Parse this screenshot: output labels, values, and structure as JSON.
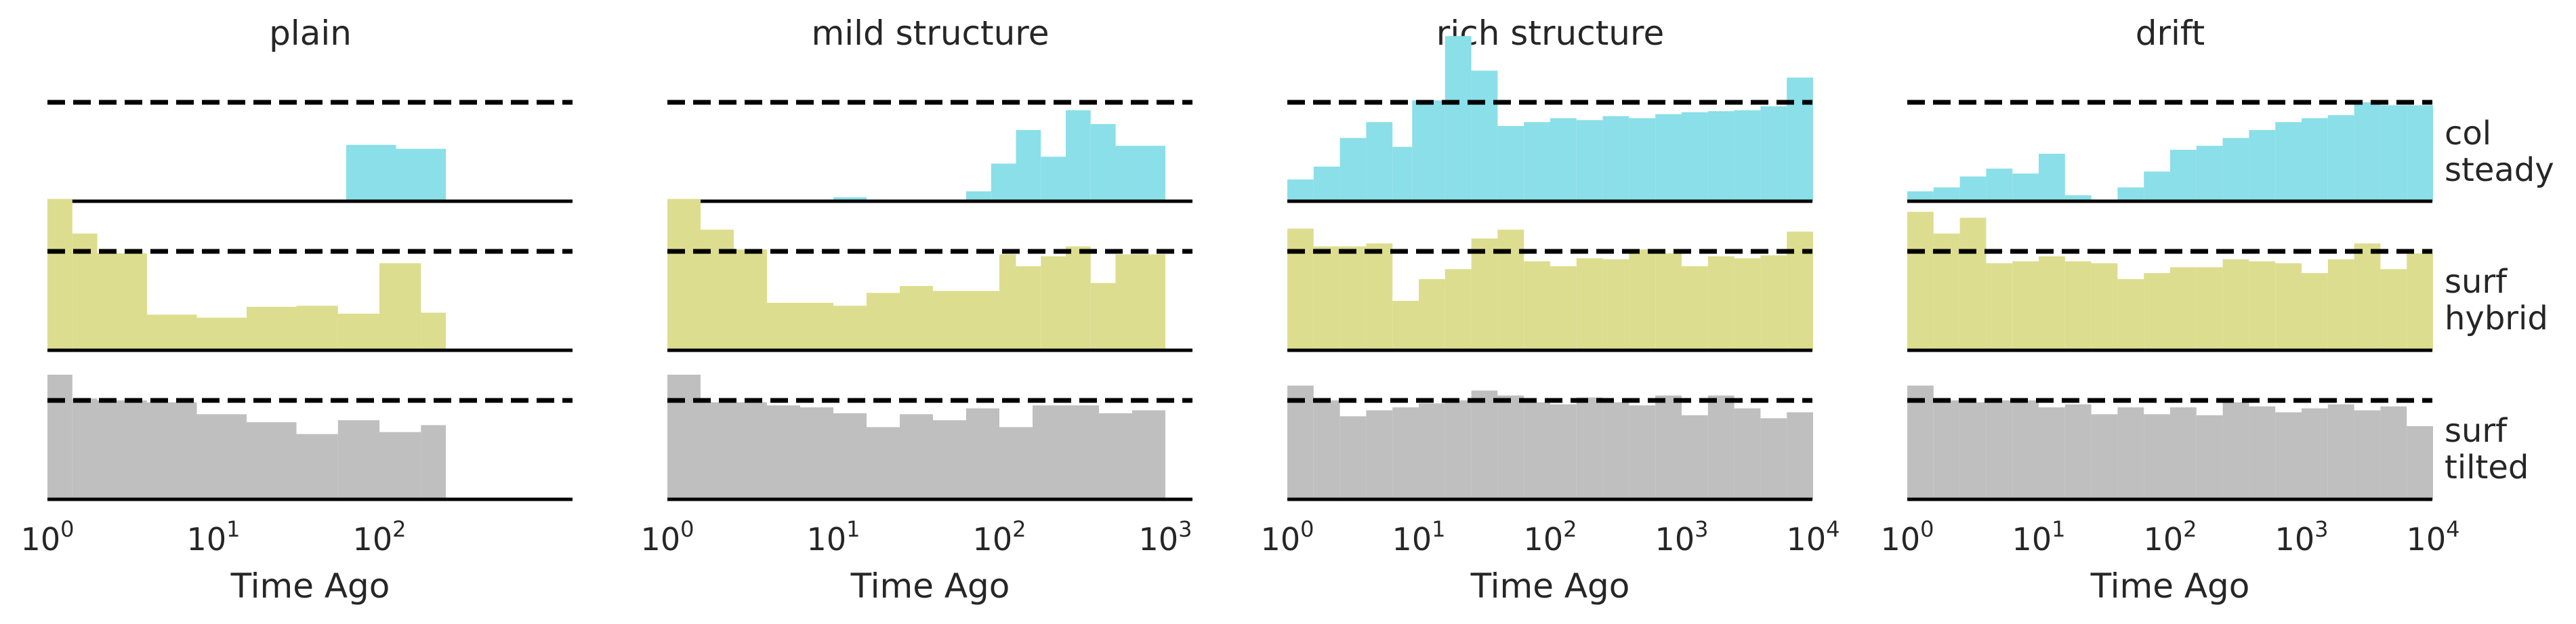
{
  "figure": {
    "columns": [
      {
        "title": "plain",
        "xlabel": "Time Ago",
        "xmax_exp": 2.4,
        "ticks": [
          {
            "base": "10",
            "exp": "0"
          },
          {
            "base": "10",
            "exp": "1"
          },
          {
            "base": "10",
            "exp": "2"
          }
        ]
      },
      {
        "title": "mild structure",
        "xlabel": "Time Ago",
        "xmax_exp": 3.0,
        "ticks": [
          {
            "base": "10",
            "exp": "0"
          },
          {
            "base": "10",
            "exp": "1"
          },
          {
            "base": "10",
            "exp": "2"
          },
          {
            "base": "10",
            "exp": "3"
          }
        ]
      },
      {
        "title": "rich structure",
        "xlabel": "Time Ago",
        "xmax_exp": 4.0,
        "ticks": [
          {
            "base": "10",
            "exp": "0"
          },
          {
            "base": "10",
            "exp": "1"
          },
          {
            "base": "10",
            "exp": "2"
          },
          {
            "base": "10",
            "exp": "3"
          },
          {
            "base": "10",
            "exp": "4"
          }
        ]
      },
      {
        "title": "drift",
        "xlabel": "Time Ago",
        "xmax_exp": 4.0,
        "ticks": [
          {
            "base": "10",
            "exp": "0"
          },
          {
            "base": "10",
            "exp": "1"
          },
          {
            "base": "10",
            "exp": "2"
          },
          {
            "base": "10",
            "exp": "3"
          },
          {
            "base": "10",
            "exp": "4"
          }
        ]
      }
    ],
    "rows": [
      {
        "label_lines": [
          "col",
          "steady"
        ],
        "color": "#8adfe8"
      },
      {
        "label_lines": [
          "surf",
          "hybrid"
        ],
        "color": "#dddd8f"
      },
      {
        "label_lines": [
          "surf",
          "tilted"
        ],
        "color": "#bfbfbf"
      }
    ],
    "colors": {
      "baseline": "#000000",
      "reference": "#000000"
    }
  },
  "chart_data": {
    "type": "histogram-grid",
    "x_scale": "log",
    "reference_line_level": 1.0,
    "panels": [
      {
        "column": "plain",
        "row": "col steady",
        "bins": [
          [
            0,
            1.8,
            0
          ],
          [
            1.8,
            2.1,
            0.57
          ],
          [
            2.1,
            2.4,
            0.53
          ]
        ]
      },
      {
        "column": "plain",
        "row": "surf hybrid",
        "bins": [
          [
            0,
            0.15,
            1.53
          ],
          [
            0.15,
            0.3,
            1.18
          ],
          [
            0.3,
            0.6,
            0.98
          ],
          [
            0.6,
            0.9,
            0.36
          ],
          [
            0.9,
            1.2,
            0.33
          ],
          [
            1.2,
            1.5,
            0.44
          ],
          [
            1.5,
            1.75,
            0.45
          ],
          [
            1.75,
            2.0,
            0.37
          ],
          [
            2.0,
            2.25,
            0.88
          ],
          [
            2.25,
            2.5,
            0.38
          ],
          [
            2.5,
            2.75,
            0.85
          ],
          [
            2.75,
            3.0,
            0.9
          ]
        ]
      },
      {
        "column": "plain",
        "row": "surf tilted",
        "bins": [
          [
            0,
            0.15,
            1.26
          ],
          [
            0.15,
            0.3,
            1.02
          ],
          [
            0.3,
            0.6,
            1.0
          ],
          [
            0.6,
            0.9,
            0.98
          ],
          [
            0.9,
            1.2,
            0.86
          ],
          [
            1.2,
            1.5,
            0.78
          ],
          [
            1.5,
            1.75,
            0.66
          ],
          [
            1.75,
            2.0,
            0.8
          ],
          [
            2.0,
            2.25,
            0.68
          ],
          [
            2.25,
            2.5,
            0.75
          ],
          [
            2.5,
            2.75,
            0.82
          ],
          [
            2.75,
            3.0,
            0.86
          ]
        ]
      },
      {
        "column": "mild structure",
        "row": "col steady",
        "bins": [
          [
            0,
            0.2,
            0
          ],
          [
            0.2,
            0.4,
            0
          ],
          [
            0.4,
            0.6,
            0
          ],
          [
            0.6,
            0.8,
            0
          ],
          [
            0.8,
            1.0,
            0
          ],
          [
            1.0,
            1.2,
            0.04
          ],
          [
            1.2,
            1.4,
            0
          ],
          [
            1.4,
            1.6,
            0
          ],
          [
            1.6,
            1.8,
            0
          ],
          [
            1.8,
            1.95,
            0.1
          ],
          [
            1.95,
            2.1,
            0.38
          ],
          [
            2.1,
            2.25,
            0.72
          ],
          [
            2.25,
            2.4,
            0.45
          ],
          [
            2.4,
            2.55,
            0.92
          ],
          [
            2.55,
            2.7,
            0.78
          ],
          [
            2.7,
            3.0,
            0.56
          ]
        ]
      },
      {
        "column": "mild structure",
        "row": "surf hybrid",
        "bins": [
          [
            0,
            0.2,
            1.53
          ],
          [
            0.2,
            0.4,
            1.22
          ],
          [
            0.4,
            0.6,
            1.02
          ],
          [
            0.6,
            1.0,
            0.48
          ],
          [
            1.0,
            1.2,
            0.45
          ],
          [
            1.2,
            1.4,
            0.58
          ],
          [
            1.4,
            1.6,
            0.65
          ],
          [
            1.6,
            1.8,
            0.6
          ],
          [
            1.8,
            2.0,
            0.6
          ],
          [
            2.0,
            2.1,
            0.97
          ],
          [
            2.1,
            2.25,
            0.85
          ],
          [
            2.25,
            2.4,
            0.95
          ],
          [
            2.4,
            2.55,
            1.05
          ],
          [
            2.55,
            2.7,
            0.68
          ],
          [
            2.7,
            3.0,
            0.97
          ]
        ]
      },
      {
        "column": "mild structure",
        "row": "surf tilted",
        "bins": [
          [
            0,
            0.2,
            1.26
          ],
          [
            0.2,
            0.4,
            0.98
          ],
          [
            0.4,
            0.6,
            0.98
          ],
          [
            0.6,
            0.8,
            0.95
          ],
          [
            0.8,
            1.0,
            0.93
          ],
          [
            1.0,
            1.2,
            0.87
          ],
          [
            1.2,
            1.4,
            0.73
          ],
          [
            1.4,
            1.6,
            0.86
          ],
          [
            1.6,
            1.8,
            0.8
          ],
          [
            1.8,
            2.0,
            0.92
          ],
          [
            2.0,
            2.2,
            0.73
          ],
          [
            2.2,
            2.4,
            0.95
          ],
          [
            2.4,
            2.6,
            0.95
          ],
          [
            2.6,
            2.8,
            0.87
          ],
          [
            2.8,
            3.0,
            0.9
          ]
        ]
      },
      {
        "column": "rich structure",
        "row": "col steady",
        "bins": [
          [
            0,
            0.2,
            0.22
          ],
          [
            0.2,
            0.4,
            0.35
          ],
          [
            0.4,
            0.6,
            0.64
          ],
          [
            0.6,
            0.8,
            0.8
          ],
          [
            0.8,
            0.95,
            0.55
          ],
          [
            0.95,
            1.2,
            1.02
          ],
          [
            1.2,
            1.4,
            1.67
          ],
          [
            1.4,
            1.6,
            1.32
          ],
          [
            1.6,
            1.8,
            0.76
          ],
          [
            1.8,
            2.0,
            0.8
          ],
          [
            2.0,
            2.2,
            0.84
          ],
          [
            2.2,
            2.4,
            0.82
          ],
          [
            2.4,
            2.6,
            0.86
          ],
          [
            2.6,
            2.8,
            0.84
          ],
          [
            2.8,
            3.0,
            0.88
          ],
          [
            3.0,
            3.2,
            0.9
          ],
          [
            3.2,
            3.4,
            0.91
          ],
          [
            3.4,
            3.6,
            0.92
          ],
          [
            3.6,
            3.8,
            0.96
          ],
          [
            3.8,
            4.0,
            1.25
          ]
        ]
      },
      {
        "column": "rich structure",
        "row": "surf hybrid",
        "bins": [
          [
            0,
            0.2,
            1.23
          ],
          [
            0.2,
            0.4,
            1.05
          ],
          [
            0.4,
            0.6,
            1.05
          ],
          [
            0.6,
            0.8,
            1.08
          ],
          [
            0.8,
            1.0,
            0.5
          ],
          [
            1.0,
            1.2,
            0.72
          ],
          [
            1.2,
            1.4,
            0.82
          ],
          [
            1.4,
            1.6,
            1.13
          ],
          [
            1.6,
            1.8,
            1.22
          ],
          [
            1.8,
            2.0,
            0.9
          ],
          [
            2.0,
            2.2,
            0.85
          ],
          [
            2.2,
            2.4,
            0.93
          ],
          [
            2.4,
            2.6,
            0.92
          ],
          [
            2.6,
            2.8,
            1.02
          ],
          [
            2.8,
            3.0,
            0.98
          ],
          [
            3.0,
            3.2,
            0.85
          ],
          [
            3.2,
            3.4,
            0.95
          ],
          [
            3.4,
            3.6,
            0.93
          ],
          [
            3.6,
            3.8,
            0.96
          ],
          [
            3.8,
            4.0,
            1.2
          ]
        ]
      },
      {
        "column": "rich structure",
        "row": "surf tilted",
        "bins": [
          [
            0,
            0.2,
            1.15
          ],
          [
            0.2,
            0.4,
            1.0
          ],
          [
            0.4,
            0.6,
            0.84
          ],
          [
            0.6,
            0.8,
            0.9
          ],
          [
            0.8,
            1.0,
            0.93
          ],
          [
            1.0,
            1.2,
            0.97
          ],
          [
            1.2,
            1.4,
            1.0
          ],
          [
            1.4,
            1.6,
            1.1
          ],
          [
            1.6,
            1.8,
            1.05
          ],
          [
            1.8,
            2.0,
            0.98
          ],
          [
            2.0,
            2.2,
            0.96
          ],
          [
            2.2,
            2.4,
            1.03
          ],
          [
            2.4,
            2.6,
            0.98
          ],
          [
            2.6,
            2.8,
            0.95
          ],
          [
            2.8,
            3.0,
            1.05
          ],
          [
            3.0,
            3.2,
            0.85
          ],
          [
            3.2,
            3.4,
            1.05
          ],
          [
            3.4,
            3.6,
            0.92
          ],
          [
            3.6,
            3.8,
            0.82
          ],
          [
            3.8,
            4.0,
            0.88
          ]
        ]
      },
      {
        "column": "drift",
        "row": "col steady",
        "bins": [
          [
            0,
            0.2,
            0.1
          ],
          [
            0.2,
            0.4,
            0.14
          ],
          [
            0.4,
            0.6,
            0.25
          ],
          [
            0.6,
            0.8,
            0.33
          ],
          [
            0.8,
            1.0,
            0.28
          ],
          [
            1.0,
            1.2,
            0.48
          ],
          [
            1.2,
            1.4,
            0.06
          ],
          [
            1.4,
            1.6,
            0
          ],
          [
            1.6,
            1.8,
            0.14
          ],
          [
            1.8,
            2.0,
            0.3
          ],
          [
            2.0,
            2.2,
            0.52
          ],
          [
            2.2,
            2.4,
            0.56
          ],
          [
            2.4,
            2.6,
            0.64
          ],
          [
            2.6,
            2.8,
            0.72
          ],
          [
            2.8,
            3.0,
            0.8
          ],
          [
            3.0,
            3.2,
            0.84
          ],
          [
            3.2,
            3.4,
            0.87
          ],
          [
            3.4,
            3.6,
            1.0
          ],
          [
            3.6,
            3.8,
            0.97
          ],
          [
            3.8,
            4.0,
            0.97
          ]
        ]
      },
      {
        "column": "drift",
        "row": "surf hybrid",
        "bins": [
          [
            0,
            0.2,
            1.4
          ],
          [
            0.2,
            0.4,
            1.18
          ],
          [
            0.4,
            0.6,
            1.34
          ],
          [
            0.6,
            0.8,
            0.88
          ],
          [
            0.8,
            1.0,
            0.9
          ],
          [
            1.0,
            1.2,
            0.95
          ],
          [
            1.2,
            1.4,
            0.9
          ],
          [
            1.4,
            1.6,
            0.88
          ],
          [
            1.6,
            1.8,
            0.72
          ],
          [
            1.8,
            2.0,
            0.78
          ],
          [
            2.0,
            2.2,
            0.84
          ],
          [
            2.2,
            2.4,
            0.84
          ],
          [
            2.4,
            2.6,
            0.92
          ],
          [
            2.6,
            2.8,
            0.9
          ],
          [
            2.8,
            3.0,
            0.88
          ],
          [
            3.0,
            3.2,
            0.78
          ],
          [
            3.2,
            3.4,
            0.92
          ],
          [
            3.4,
            3.6,
            1.08
          ],
          [
            3.6,
            3.8,
            0.82
          ],
          [
            3.8,
            4.0,
            0.98
          ]
        ]
      },
      {
        "column": "drift",
        "row": "surf tilted",
        "bins": [
          [
            0,
            0.2,
            1.15
          ],
          [
            0.2,
            0.4,
            1.0
          ],
          [
            0.4,
            0.6,
            0.98
          ],
          [
            0.6,
            0.8,
            1.0
          ],
          [
            0.8,
            1.0,
            1.0
          ],
          [
            1.0,
            1.2,
            0.93
          ],
          [
            1.2,
            1.4,
            0.96
          ],
          [
            1.4,
            1.6,
            0.86
          ],
          [
            1.6,
            1.8,
            0.93
          ],
          [
            1.8,
            2.0,
            0.86
          ],
          [
            2.0,
            2.2,
            0.93
          ],
          [
            2.2,
            2.4,
            0.85
          ],
          [
            2.4,
            2.6,
            0.98
          ],
          [
            2.6,
            2.8,
            0.94
          ],
          [
            2.8,
            3.0,
            0.88
          ],
          [
            3.0,
            3.2,
            0.92
          ],
          [
            3.2,
            3.4,
            0.96
          ],
          [
            3.4,
            3.6,
            0.9
          ],
          [
            3.6,
            3.8,
            0.94
          ],
          [
            3.8,
            4.0,
            0.74
          ]
        ]
      }
    ]
  }
}
